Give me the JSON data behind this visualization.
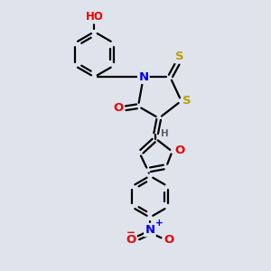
{
  "bg_color": "#dfe3ec",
  "atom_colors": {
    "C": "#000000",
    "N": "#0000ee",
    "O": "#ee0000",
    "S": "#b8a000",
    "H": "#606060"
  },
  "bond_color": "#000000",
  "bond_width": 1.6,
  "font_size_atom": 8.5,
  "font_size_small": 6.5
}
